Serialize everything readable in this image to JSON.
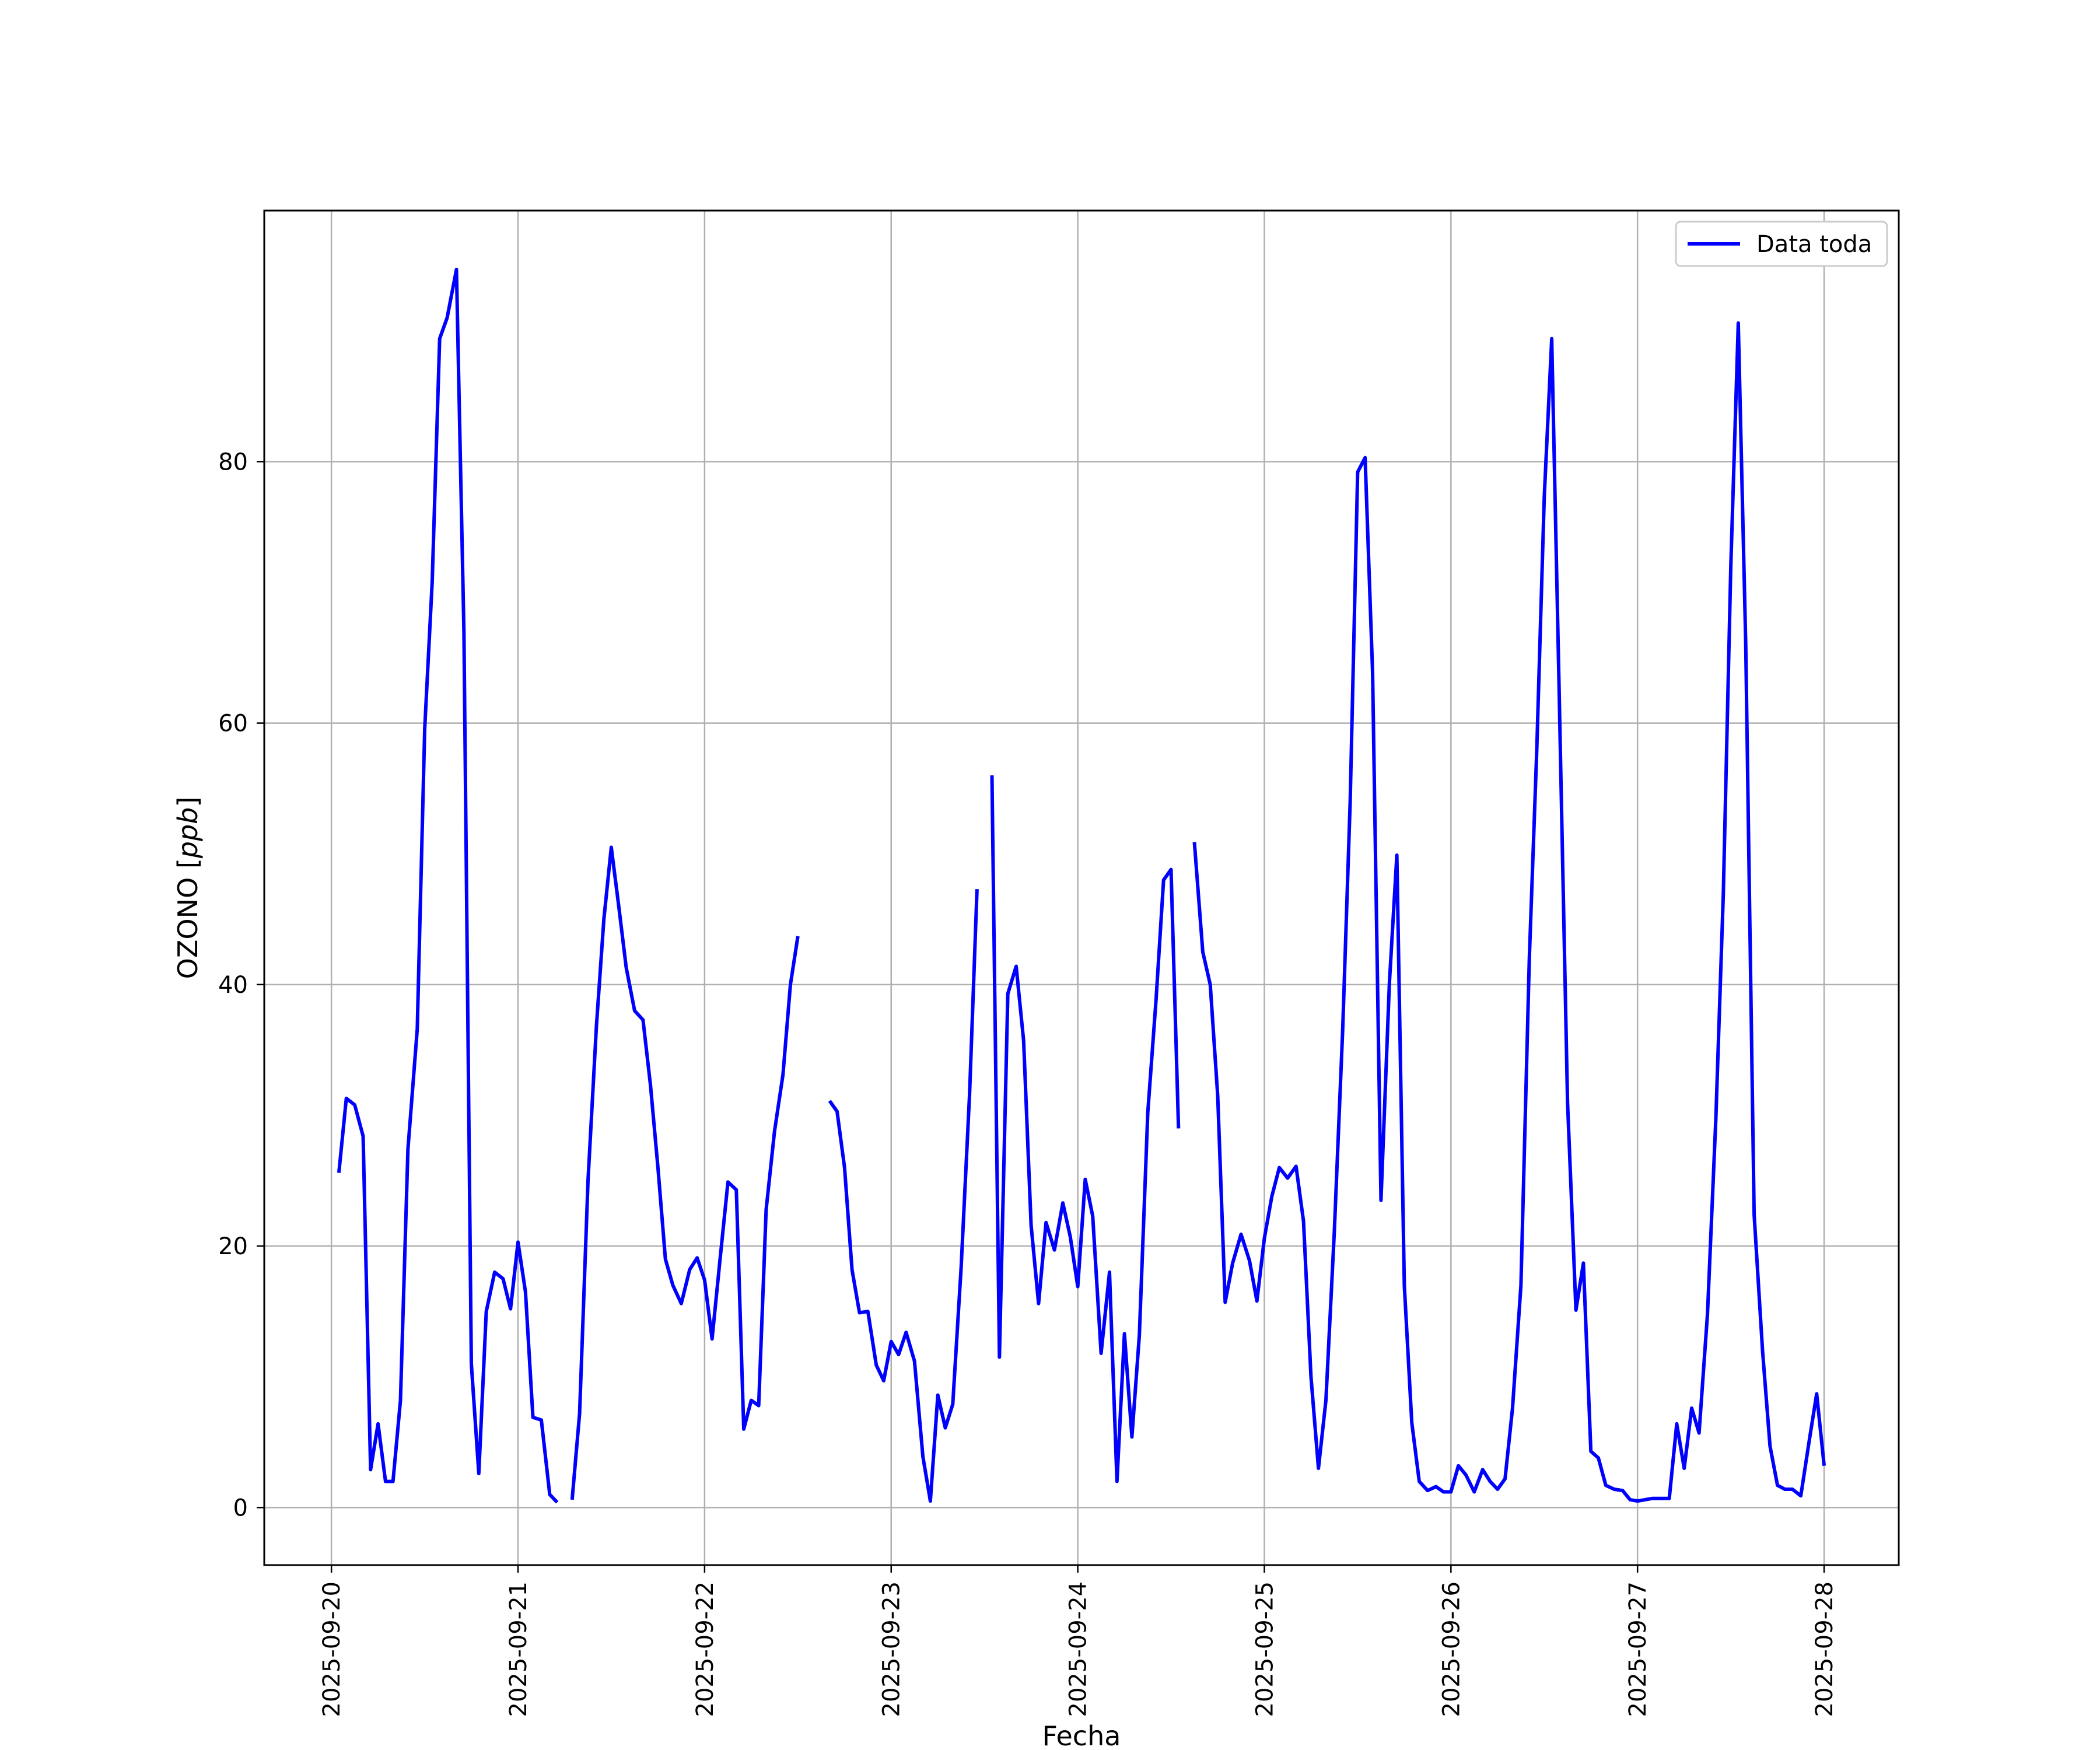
{
  "chart_data": {
    "type": "line",
    "title": "",
    "xlabel": "Fecha",
    "ylabel_main": "OZONO [",
    "ylabel_unit": "ppb",
    "ylabel_close": "]",
    "x_ticks": [
      "2025-09-20",
      "2025-09-21",
      "2025-09-22",
      "2025-09-23",
      "2025-09-24",
      "2025-09-25",
      "2025-09-26",
      "2025-09-27",
      "2025-09-28"
    ],
    "y_ticks": [
      "0",
      "20",
      "40",
      "60",
      "80"
    ],
    "xlim_days": [
      -0.36,
      8.4
    ],
    "ylim": [
      -4.4,
      99.2
    ],
    "grid": true,
    "legend_position": "upper right",
    "series": [
      {
        "name": "Data toda",
        "color": "#0000ff",
        "segments": [
          [
            [
              0.04,
              25.6
            ],
            [
              0.08,
              31.3
            ],
            [
              0.125,
              30.8
            ],
            [
              0.17,
              28.4
            ],
            [
              0.21,
              2.9
            ],
            [
              0.25,
              6.4
            ],
            [
              0.29,
              2.0
            ],
            [
              0.33,
              2.0
            ],
            [
              0.37,
              8.2
            ],
            [
              0.41,
              27.4
            ],
            [
              0.46,
              36.6
            ],
            [
              0.5,
              59.6
            ],
            [
              0.54,
              70.8
            ],
            [
              0.58,
              89.4
            ],
            [
              0.62,
              91.0
            ],
            [
              0.67,
              94.7
            ],
            [
              0.71,
              67.0
            ],
            [
              0.75,
              11.0
            ],
            [
              0.79,
              2.6
            ],
            [
              0.83,
              15.0
            ],
            [
              0.875,
              18.0
            ],
            [
              0.92,
              17.5
            ],
            [
              0.96,
              15.2
            ],
            [
              1.0,
              20.3
            ],
            [
              1.04,
              16.5
            ],
            [
              1.08,
              6.9
            ],
            [
              1.125,
              6.7
            ],
            [
              1.17,
              1.0
            ],
            [
              1.21,
              0.4
            ]
          ],
          [
            [
              1.29,
              0.6
            ],
            [
              1.33,
              7.2
            ],
            [
              1.375,
              25.0
            ],
            [
              1.42,
              36.8
            ],
            [
              1.46,
              45.0
            ],
            [
              1.5,
              50.5
            ],
            [
              1.54,
              46.0
            ],
            [
              1.58,
              41.3
            ],
            [
              1.625,
              38.0
            ],
            [
              1.67,
              37.3
            ],
            [
              1.71,
              32.3
            ],
            [
              1.75,
              26.0
            ],
            [
              1.79,
              19.0
            ],
            [
              1.83,
              17.0
            ],
            [
              1.875,
              15.6
            ],
            [
              1.92,
              18.2
            ],
            [
              1.96,
              19.1
            ],
            [
              2.0,
              17.4
            ],
            [
              2.04,
              12.9
            ],
            [
              2.08,
              18.6
            ],
            [
              2.125,
              24.9
            ],
            [
              2.17,
              24.3
            ],
            [
              2.21,
              6.0
            ],
            [
              2.25,
              8.2
            ],
            [
              2.29,
              7.8
            ],
            [
              2.33,
              22.8
            ],
            [
              2.375,
              28.8
            ],
            [
              2.42,
              33.1
            ],
            [
              2.46,
              40.0
            ],
            [
              2.5,
              43.7
            ]
          ],
          [
            [
              2.67,
              31.1
            ],
            [
              2.71,
              30.3
            ],
            [
              2.75,
              26.0
            ],
            [
              2.79,
              18.2
            ],
            [
              2.83,
              14.9
            ],
            [
              2.875,
              15.0
            ],
            [
              2.92,
              10.9
            ],
            [
              2.96,
              9.7
            ],
            [
              3.0,
              12.7
            ],
            [
              3.04,
              11.7
            ],
            [
              3.08,
              13.4
            ],
            [
              3.125,
              11.2
            ],
            [
              3.17,
              3.9
            ],
            [
              3.21,
              0.5
            ],
            [
              3.25,
              8.6
            ],
            [
              3.29,
              6.1
            ],
            [
              3.33,
              7.9
            ],
            [
              3.375,
              18.4
            ],
            [
              3.42,
              31.6
            ],
            [
              3.46,
              47.3
            ]
          ],
          [
            [
              3.54,
              56.0
            ],
            [
              3.58,
              11.5
            ],
            [
              3.625,
              39.3
            ],
            [
              3.67,
              41.4
            ],
            [
              3.71,
              35.7
            ],
            [
              3.75,
              21.6
            ],
            [
              3.79,
              15.6
            ],
            [
              3.83,
              21.8
            ],
            [
              3.875,
              19.7
            ],
            [
              3.92,
              23.3
            ],
            [
              3.96,
              20.7
            ],
            [
              4.0,
              16.9
            ],
            [
              4.04,
              25.1
            ],
            [
              4.08,
              22.3
            ],
            [
              4.125,
              11.8
            ],
            [
              4.17,
              18.0
            ],
            [
              4.21,
              2.0
            ],
            [
              4.25,
              13.3
            ],
            [
              4.29,
              5.4
            ],
            [
              4.33,
              13.2
            ],
            [
              4.375,
              30.2
            ],
            [
              4.42,
              38.9
            ],
            [
              4.46,
              48.0
            ],
            [
              4.5,
              48.8
            ],
            [
              4.54,
              29.0
            ]
          ],
          [
            [
              4.625,
              50.9
            ],
            [
              4.67,
              42.5
            ],
            [
              4.71,
              40.0
            ],
            [
              4.75,
              31.5
            ],
            [
              4.79,
              15.7
            ],
            [
              4.83,
              18.7
            ],
            [
              4.875,
              20.9
            ],
            [
              4.92,
              18.9
            ],
            [
              4.96,
              15.8
            ],
            [
              5.0,
              20.6
            ],
            [
              5.04,
              23.8
            ],
            [
              5.08,
              26.0
            ],
            [
              5.125,
              25.2
            ],
            [
              5.17,
              26.1
            ],
            [
              5.21,
              21.9
            ],
            [
              5.25,
              10.0
            ],
            [
              5.29,
              3.0
            ],
            [
              5.33,
              8.2
            ],
            [
              5.375,
              21.1
            ],
            [
              5.42,
              36.6
            ],
            [
              5.46,
              54.0
            ],
            [
              5.5,
              79.2
            ],
            [
              5.54,
              80.3
            ],
            [
              5.58,
              63.9
            ],
            [
              5.625,
              23.5
            ],
            [
              5.67,
              40.1
            ],
            [
              5.71,
              49.9
            ],
            [
              5.75,
              17.0
            ],
            [
              5.79,
              6.5
            ],
            [
              5.83,
              2.0
            ],
            [
              5.875,
              1.3
            ],
            [
              5.92,
              1.6
            ],
            [
              5.96,
              1.2
            ],
            [
              6.0,
              1.2
            ],
            [
              6.04,
              3.2
            ],
            [
              6.08,
              2.5
            ],
            [
              6.125,
              1.2
            ],
            [
              6.17,
              2.9
            ],
            [
              6.21,
              2.0
            ],
            [
              6.25,
              1.4
            ],
            [
              6.29,
              2.2
            ],
            [
              6.33,
              7.6
            ],
            [
              6.375,
              17.0
            ],
            [
              6.42,
              42.0
            ],
            [
              6.46,
              58.0
            ],
            [
              6.5,
              77.3
            ],
            [
              6.54,
              89.4
            ],
            [
              6.58,
              62.5
            ],
            [
              6.625,
              31.0
            ],
            [
              6.67,
              15.1
            ],
            [
              6.71,
              18.7
            ],
            [
              6.75,
              4.3
            ],
            [
              6.79,
              3.8
            ],
            [
              6.83,
              1.7
            ],
            [
              6.875,
              1.4
            ],
            [
              6.92,
              1.3
            ],
            [
              6.96,
              0.6
            ],
            [
              7.0,
              0.5
            ],
            [
              7.04,
              0.6
            ],
            [
              7.08,
              0.7
            ],
            [
              7.125,
              0.7
            ],
            [
              7.17,
              0.7
            ],
            [
              7.21,
              6.4
            ],
            [
              7.25,
              3.0
            ],
            [
              7.29,
              7.6
            ],
            [
              7.33,
              5.7
            ],
            [
              7.375,
              14.8
            ],
            [
              7.42,
              29.8
            ],
            [
              7.46,
              47.0
            ],
            [
              7.5,
              72.0
            ],
            [
              7.54,
              90.6
            ],
            [
              7.58,
              66.0
            ],
            [
              7.625,
              22.4
            ],
            [
              7.67,
              12.0
            ],
            [
              7.71,
              4.7
            ],
            [
              7.75,
              1.7
            ],
            [
              7.79,
              1.4
            ],
            [
              7.83,
              1.4
            ],
            [
              7.875,
              0.9
            ],
            [
              7.92,
              5.1
            ],
            [
              7.96,
              8.7
            ],
            [
              8.0,
              3.2
            ]
          ]
        ]
      }
    ]
  }
}
